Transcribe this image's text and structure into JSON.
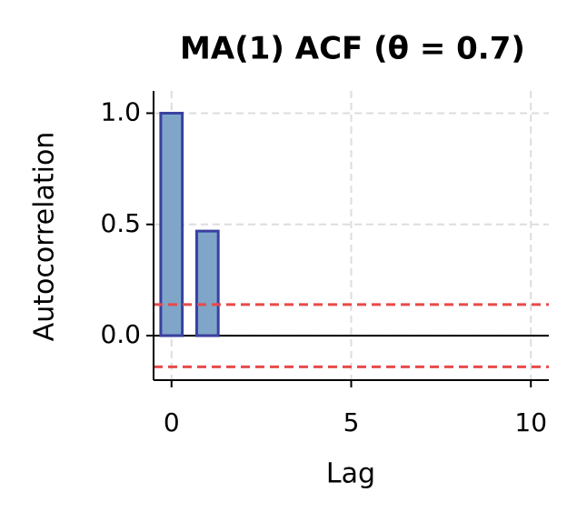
{
  "chart_data": {
    "type": "bar",
    "title": "MA(1) ACF (θ = 0.7)",
    "x_label": "Lag",
    "y_label": "Autocorrelation",
    "x": [
      0,
      1,
      2,
      3,
      4,
      5,
      6,
      7,
      8,
      9,
      10
    ],
    "values": [
      1.0,
      0.47,
      0,
      0,
      0,
      0,
      0,
      0,
      0,
      0,
      0
    ],
    "color": "#7fa6c9",
    "edge_color": "#3a40a0",
    "confidence_lines": [
      0.14,
      -0.14
    ],
    "confidence_color": "#e84a4a",
    "xlim": [
      -0.5,
      10.5
    ],
    "xticks": [
      0,
      5,
      10
    ],
    "ylim": [
      -0.2,
      1.1
    ],
    "yticks": [
      {
        "value": 0,
        "label": "0.0"
      },
      {
        "value": 0.5,
        "label": "0.5"
      },
      {
        "value": 1,
        "label": "1.0"
      }
    ],
    "grid": true
  }
}
